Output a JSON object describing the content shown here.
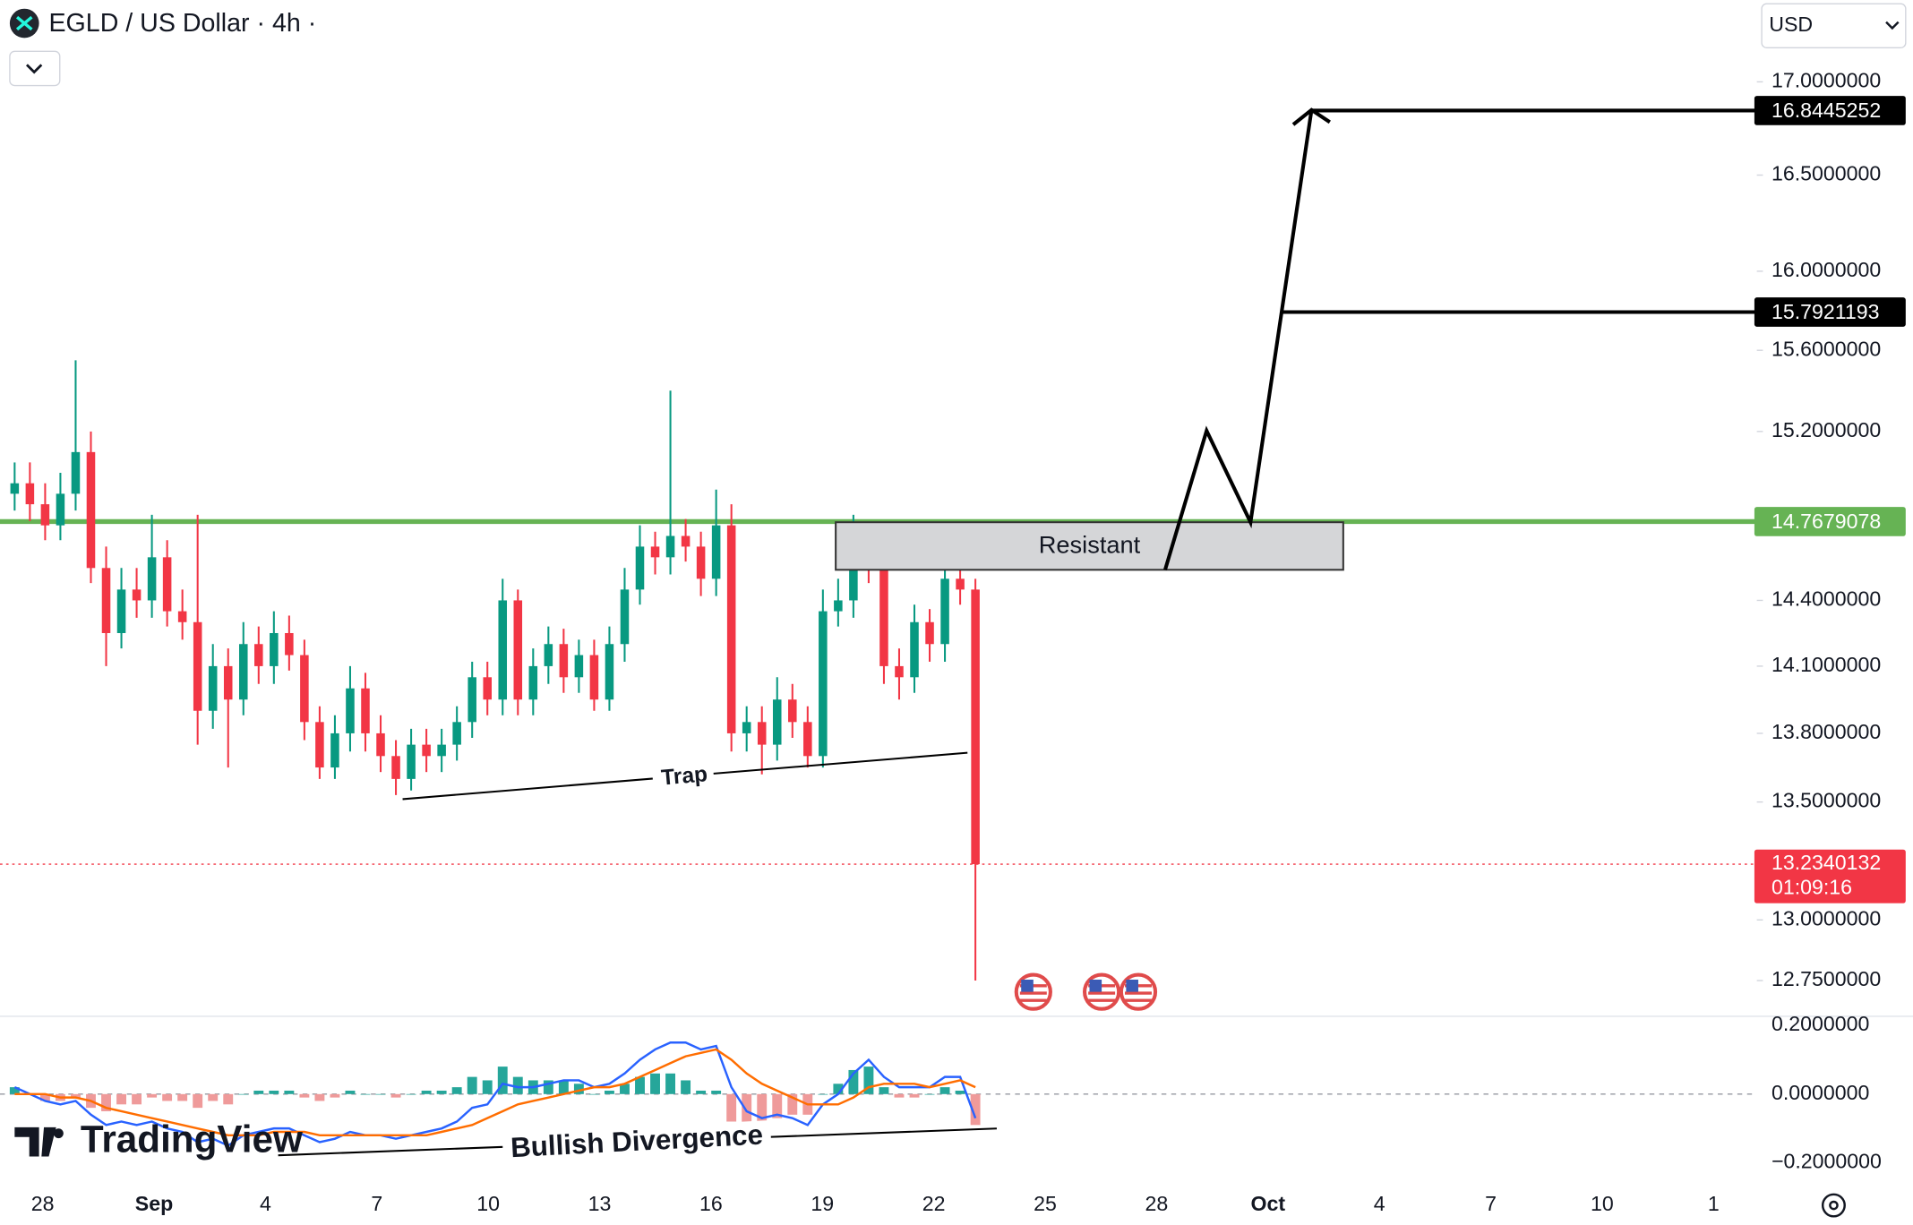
{
  "header": {
    "symbol": "EGLD / US Dollar · 4h ·",
    "currency": "USD"
  },
  "annotations": {
    "zone": "Resistant",
    "trap": "Trap",
    "divergence": "Bullish Divergence",
    "brand": "TradingView"
  },
  "chart_data": [
    {
      "type": "candlestick",
      "log_scale": true,
      "ylim": [
        12.61,
        17.18
      ],
      "up_color": "#089981",
      "down_color": "#f23645",
      "yticks": [
        {
          "value": 17,
          "label": "17.0000000"
        },
        {
          "value": 16.5,
          "label": "16.5000000"
        },
        {
          "value": 16,
          "label": "16.0000000"
        },
        {
          "value": 15.6,
          "label": "15.6000000"
        },
        {
          "value": 15.2,
          "label": "15.2000000"
        },
        {
          "value": 14.4,
          "label": "14.4000000"
        },
        {
          "value": 14.1,
          "label": "14.1000000"
        },
        {
          "value": 13.8,
          "label": "13.8000000"
        },
        {
          "value": 13.5,
          "label": "13.5000000"
        },
        {
          "value": 13,
          "label": "13.0000000"
        },
        {
          "value": 12.75,
          "label": "12.7500000"
        }
      ],
      "x_labels": [
        "28",
        "Sep",
        "4",
        "7",
        "10",
        "13",
        "16",
        "19",
        "22",
        "25",
        "28",
        "Oct",
        "4",
        "7",
        "10",
        "1"
      ],
      "open": [
        14.9,
        14.95,
        14.85,
        14.75,
        14.9,
        15.1,
        14.55,
        14.25,
        14.45,
        14.4,
        14.6,
        14.35,
        14.3,
        13.9,
        14.1,
        13.95,
        14.2,
        14.1,
        14.25,
        14.15,
        13.85,
        13.65,
        13.8,
        14.0,
        13.8,
        13.7,
        13.6,
        13.75,
        13.7,
        13.75,
        13.85,
        14.05,
        13.95,
        14.4,
        13.95,
        14.1,
        14.2,
        14.05,
        14.15,
        13.95,
        14.2,
        14.45,
        14.65,
        14.6,
        14.7,
        14.65,
        14.5,
        14.75,
        13.8,
        13.85,
        13.75,
        13.95,
        13.85,
        13.7,
        14.35,
        14.4,
        14.65,
        14.55,
        14.1,
        14.05,
        14.3,
        14.2,
        14.5,
        14.45
      ],
      "high": [
        15.05,
        15.05,
        14.95,
        15.0,
        15.55,
        15.2,
        14.65,
        14.55,
        14.55,
        14.8,
        14.68,
        14.45,
        14.8,
        14.2,
        14.18,
        14.3,
        14.28,
        14.35,
        14.33,
        14.22,
        13.92,
        13.88,
        14.1,
        14.07,
        13.88,
        13.77,
        13.82,
        13.82,
        13.82,
        13.92,
        14.12,
        14.12,
        14.5,
        14.45,
        14.18,
        14.28,
        14.27,
        14.22,
        14.22,
        14.28,
        14.55,
        14.75,
        14.72,
        15.4,
        14.78,
        14.72,
        14.92,
        14.85,
        13.92,
        13.92,
        14.05,
        14.02,
        13.92,
        14.45,
        14.5,
        14.8,
        14.72,
        14.6,
        14.18,
        14.38,
        14.36,
        14.7,
        14.55,
        14.5
      ],
      "low": [
        14.82,
        14.77,
        14.68,
        14.68,
        14.82,
        14.48,
        14.1,
        14.18,
        14.32,
        14.32,
        14.28,
        14.22,
        13.75,
        13.82,
        13.65,
        13.88,
        14.02,
        14.02,
        14.08,
        13.77,
        13.6,
        13.6,
        13.72,
        13.72,
        13.63,
        13.53,
        13.55,
        13.63,
        13.63,
        13.68,
        13.78,
        13.88,
        13.88,
        13.88,
        13.88,
        14.02,
        13.98,
        13.98,
        13.9,
        13.9,
        14.12,
        14.38,
        14.52,
        14.52,
        14.58,
        14.42,
        14.42,
        13.72,
        13.72,
        13.62,
        13.68,
        13.78,
        13.65,
        13.65,
        14.28,
        14.32,
        14.48,
        14.02,
        13.95,
        13.98,
        14.12,
        14.12,
        14.38,
        12.75
      ],
      "close": [
        14.95,
        14.85,
        14.75,
        14.9,
        15.1,
        14.55,
        14.25,
        14.45,
        14.4,
        14.6,
        14.35,
        14.3,
        13.9,
        14.1,
        13.95,
        14.2,
        14.1,
        14.25,
        14.15,
        13.85,
        13.65,
        13.8,
        14.0,
        13.8,
        13.7,
        13.6,
        13.75,
        13.7,
        13.75,
        13.85,
        14.05,
        13.95,
        14.4,
        13.95,
        14.1,
        14.2,
        14.05,
        14.15,
        13.95,
        14.2,
        14.45,
        14.65,
        14.6,
        14.7,
        14.65,
        14.5,
        14.75,
        13.8,
        13.85,
        13.75,
        13.95,
        13.85,
        13.7,
        14.35,
        14.4,
        14.65,
        14.55,
        14.1,
        14.05,
        14.3,
        14.2,
        14.5,
        14.45,
        13.2340132
      ],
      "price_lines": [
        {
          "value": 16.8445252,
          "color": "#000000"
        },
        {
          "value": 15.7921193,
          "color": "#000000"
        },
        {
          "value": 14.7679078,
          "color": "#66b354"
        }
      ],
      "last_price": {
        "value": 13.2340132,
        "color": "#f23645",
        "countdown": "01:09:16"
      }
    },
    {
      "type": "macd",
      "ylim": [
        -0.26,
        0.223
      ],
      "yticks": [
        {
          "value": 0.2,
          "label": "0.2000000"
        },
        {
          "value": 0,
          "label": "0.0000000"
        },
        {
          "value": -0.2,
          "label": "−0.2000000"
        }
      ],
      "histogram": {
        "up_color": "#26a69a",
        "down_color": "#ef9a9a",
        "values": [
          0.02,
          0.0,
          -0.02,
          -0.02,
          -0.01,
          -0.04,
          -0.05,
          -0.03,
          -0.03,
          -0.01,
          -0.02,
          -0.02,
          -0.04,
          -0.02,
          -0.03,
          0.0,
          0.01,
          0.01,
          0.01,
          -0.01,
          -0.02,
          -0.01,
          0.01,
          0.0,
          0.0,
          -0.01,
          0.0,
          0.01,
          0.01,
          0.02,
          0.05,
          0.04,
          0.08,
          0.05,
          0.04,
          0.04,
          0.04,
          0.03,
          0.0,
          0.01,
          0.03,
          0.05,
          0.06,
          0.06,
          0.04,
          0.01,
          0.01,
          -0.08,
          -0.11,
          -0.1,
          -0.07,
          -0.06,
          -0.06,
          0.0,
          0.03,
          0.07,
          0.08,
          0.02,
          -0.01,
          -0.01,
          0.0,
          0.02,
          0.01,
          -0.09
        ]
      },
      "series": [
        {
          "color": "#2962ff",
          "values": [
            0.02,
            0.0,
            -0.02,
            -0.03,
            -0.02,
            -0.06,
            -0.09,
            -0.08,
            -0.09,
            -0.08,
            -0.1,
            -0.11,
            -0.14,
            -0.13,
            -0.15,
            -0.12,
            -0.11,
            -0.1,
            -0.1,
            -0.12,
            -0.14,
            -0.13,
            -0.11,
            -0.12,
            -0.12,
            -0.13,
            -0.12,
            -0.11,
            -0.1,
            -0.08,
            -0.04,
            -0.03,
            0.03,
            0.02,
            0.02,
            0.03,
            0.04,
            0.04,
            0.02,
            0.03,
            0.06,
            0.1,
            0.13,
            0.15,
            0.15,
            0.13,
            0.14,
            0.02,
            -0.05,
            -0.07,
            -0.06,
            -0.07,
            -0.09,
            -0.03,
            0.0,
            0.06,
            0.1,
            0.05,
            0.02,
            0.02,
            0.02,
            0.05,
            0.05,
            -0.07
          ]
        },
        {
          "color": "#ff6d00",
          "values": [
            0.0,
            0.0,
            0.0,
            -0.01,
            -0.01,
            -0.02,
            -0.04,
            -0.05,
            -0.06,
            -0.07,
            -0.08,
            -0.09,
            -0.1,
            -0.11,
            -0.12,
            -0.12,
            -0.12,
            -0.11,
            -0.11,
            -0.11,
            -0.12,
            -0.12,
            -0.12,
            -0.12,
            -0.12,
            -0.12,
            -0.12,
            -0.12,
            -0.11,
            -0.1,
            -0.09,
            -0.07,
            -0.05,
            -0.03,
            -0.02,
            -0.01,
            0.0,
            0.01,
            0.02,
            0.02,
            0.03,
            0.05,
            0.07,
            0.09,
            0.11,
            0.12,
            0.13,
            0.1,
            0.06,
            0.03,
            0.01,
            -0.01,
            -0.03,
            -0.03,
            -0.03,
            -0.01,
            0.02,
            0.03,
            0.03,
            0.03,
            0.02,
            0.03,
            0.04,
            0.02
          ]
        }
      ]
    }
  ]
}
